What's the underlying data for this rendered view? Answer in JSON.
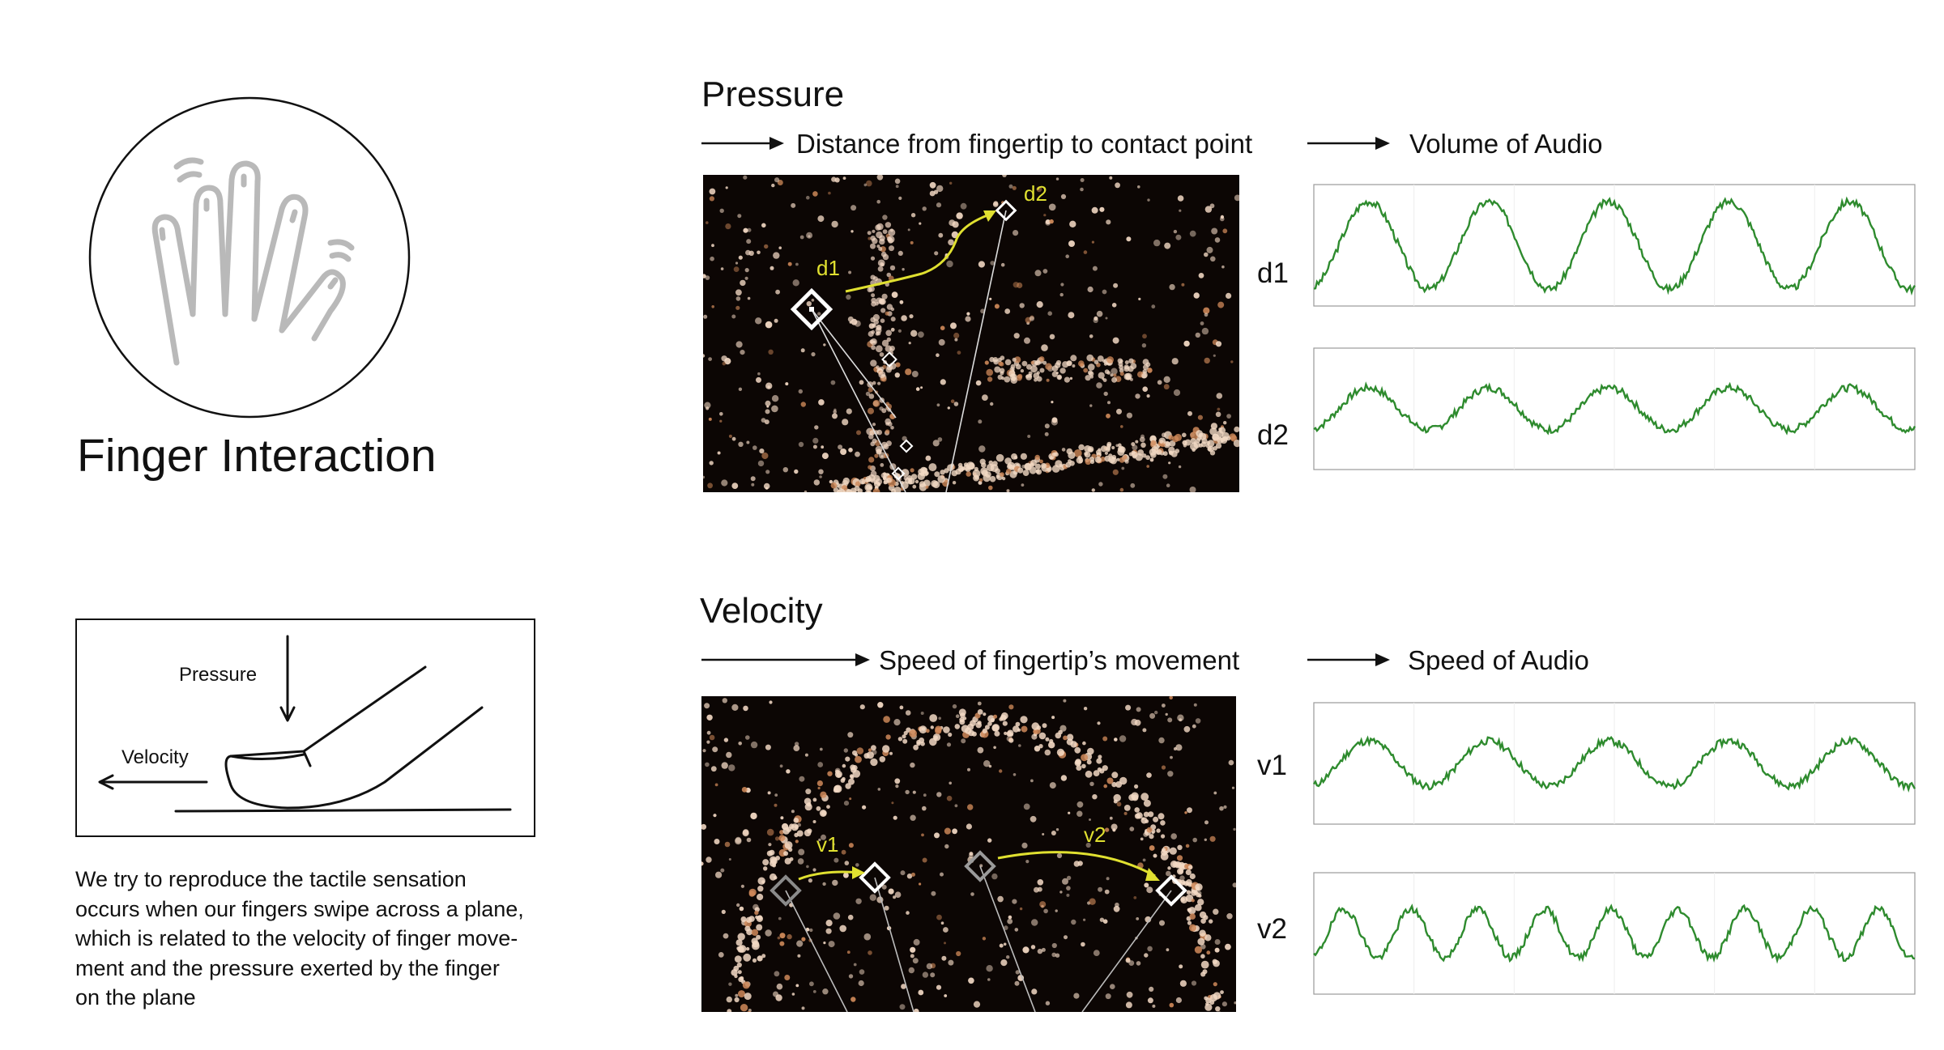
{
  "left": {
    "title": "Finger Interaction",
    "icon": "hand-fingers-icon",
    "diagram": {
      "pressure_label": "Pressure",
      "velocity_label": "Velocity"
    },
    "description_lines": [
      "We try to reproduce the tactile sensation",
      "occurs when our fingers swipe across a plane,",
      "which is related to the velocity of finger move-",
      "ment and the pressure exerted by the finger",
      "on the plane"
    ]
  },
  "pressure": {
    "title": "Pressure",
    "input_label": "Distance from fingertip to contact point",
    "output_label": "Volume of Audio",
    "photo_labels": {
      "a": "d1",
      "b": "d2"
    },
    "plots": [
      {
        "label": "d1"
      },
      {
        "label": "d2"
      }
    ]
  },
  "velocity": {
    "title": "Velocity",
    "input_label": "Speed of fingertip’s movement",
    "output_label": "Speed of Audio",
    "photo_labels": {
      "a": "v1",
      "b": "v2"
    },
    "plots": [
      {
        "label": "v1"
      },
      {
        "label": "v2"
      }
    ]
  },
  "colors": {
    "waveform": "#2e8b2e",
    "annotation": "#e0e030",
    "photo_background": "#0c0604",
    "particle": "#f3d9c4"
  }
}
